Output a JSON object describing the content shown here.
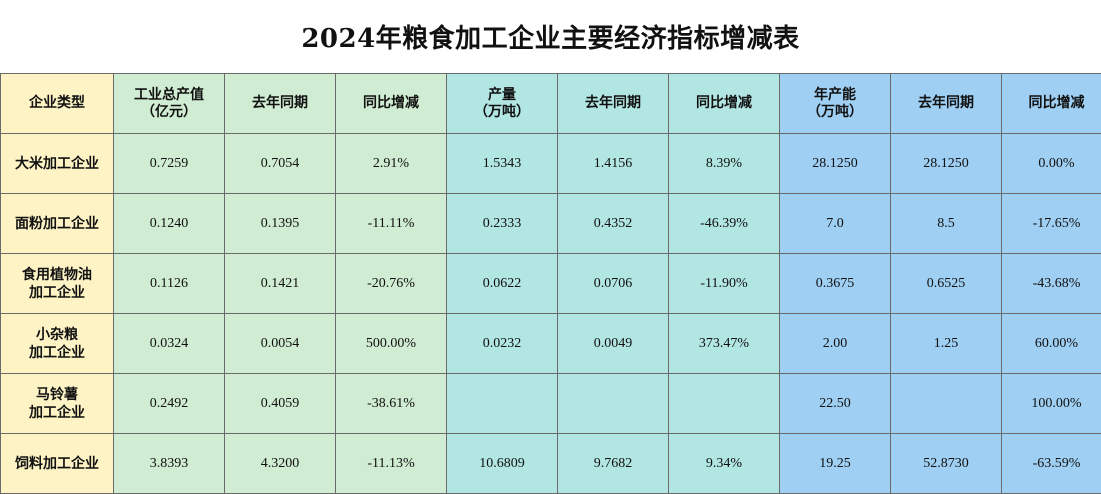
{
  "title": "2024年粮食加工企业主要经济指标增减表",
  "headers": {
    "type": "企业类型",
    "output_value": [
      "工业总产值",
      "（亿元）"
    ],
    "output_value_prev": "去年同期",
    "output_value_yoy": "同比增减",
    "production": [
      "产量",
      "（万吨）"
    ],
    "production_prev": "去年同期",
    "production_yoy": "同比增减",
    "capacity": [
      "年产能",
      "（万吨）"
    ],
    "capacity_prev": "去年同期",
    "capacity_yoy": "同比增减"
  },
  "rows": [
    {
      "type": [
        "大米加工企业"
      ],
      "values": [
        "0.7259",
        "0.7054",
        "2.91%",
        "1.5343",
        "1.4156",
        "8.39%",
        "28.1250",
        "28.1250",
        "0.00%"
      ]
    },
    {
      "type": [
        "面粉加工企业"
      ],
      "values": [
        "0.1240",
        "0.1395",
        "-11.11%",
        "0.2333",
        "0.4352",
        "-46.39%",
        "7.0",
        "8.5",
        "-17.65%"
      ]
    },
    {
      "type": [
        "食用植物油",
        "加工企业"
      ],
      "values": [
        "0.1126",
        "0.1421",
        "-20.76%",
        "0.0622",
        "0.0706",
        "-11.90%",
        "0.3675",
        "0.6525",
        "-43.68%"
      ]
    },
    {
      "type": [
        "小杂粮",
        "加工企业"
      ],
      "values": [
        "0.0324",
        "0.0054",
        "500.00%",
        "0.0232",
        "0.0049",
        "373.47%",
        "2.00",
        "1.25",
        "60.00%"
      ]
    },
    {
      "type": [
        "马铃薯",
        "加工企业"
      ],
      "values": [
        "0.2492",
        "0.4059",
        "-38.61%",
        "",
        "",
        "",
        "22.50",
        "",
        "100.00%"
      ]
    },
    {
      "type": [
        "饲料加工企业"
      ],
      "values": [
        "3.8393",
        "4.3200",
        "-11.13%",
        "10.6809",
        "9.7682",
        "9.34%",
        "19.25",
        "52.8730",
        "-63.59%"
      ]
    }
  ],
  "colors": {
    "type_column": "#fdf3c5",
    "output_group": "#d0ecd2",
    "production_group": "#b2e6e2",
    "capacity_group": "#9fd0f4"
  }
}
